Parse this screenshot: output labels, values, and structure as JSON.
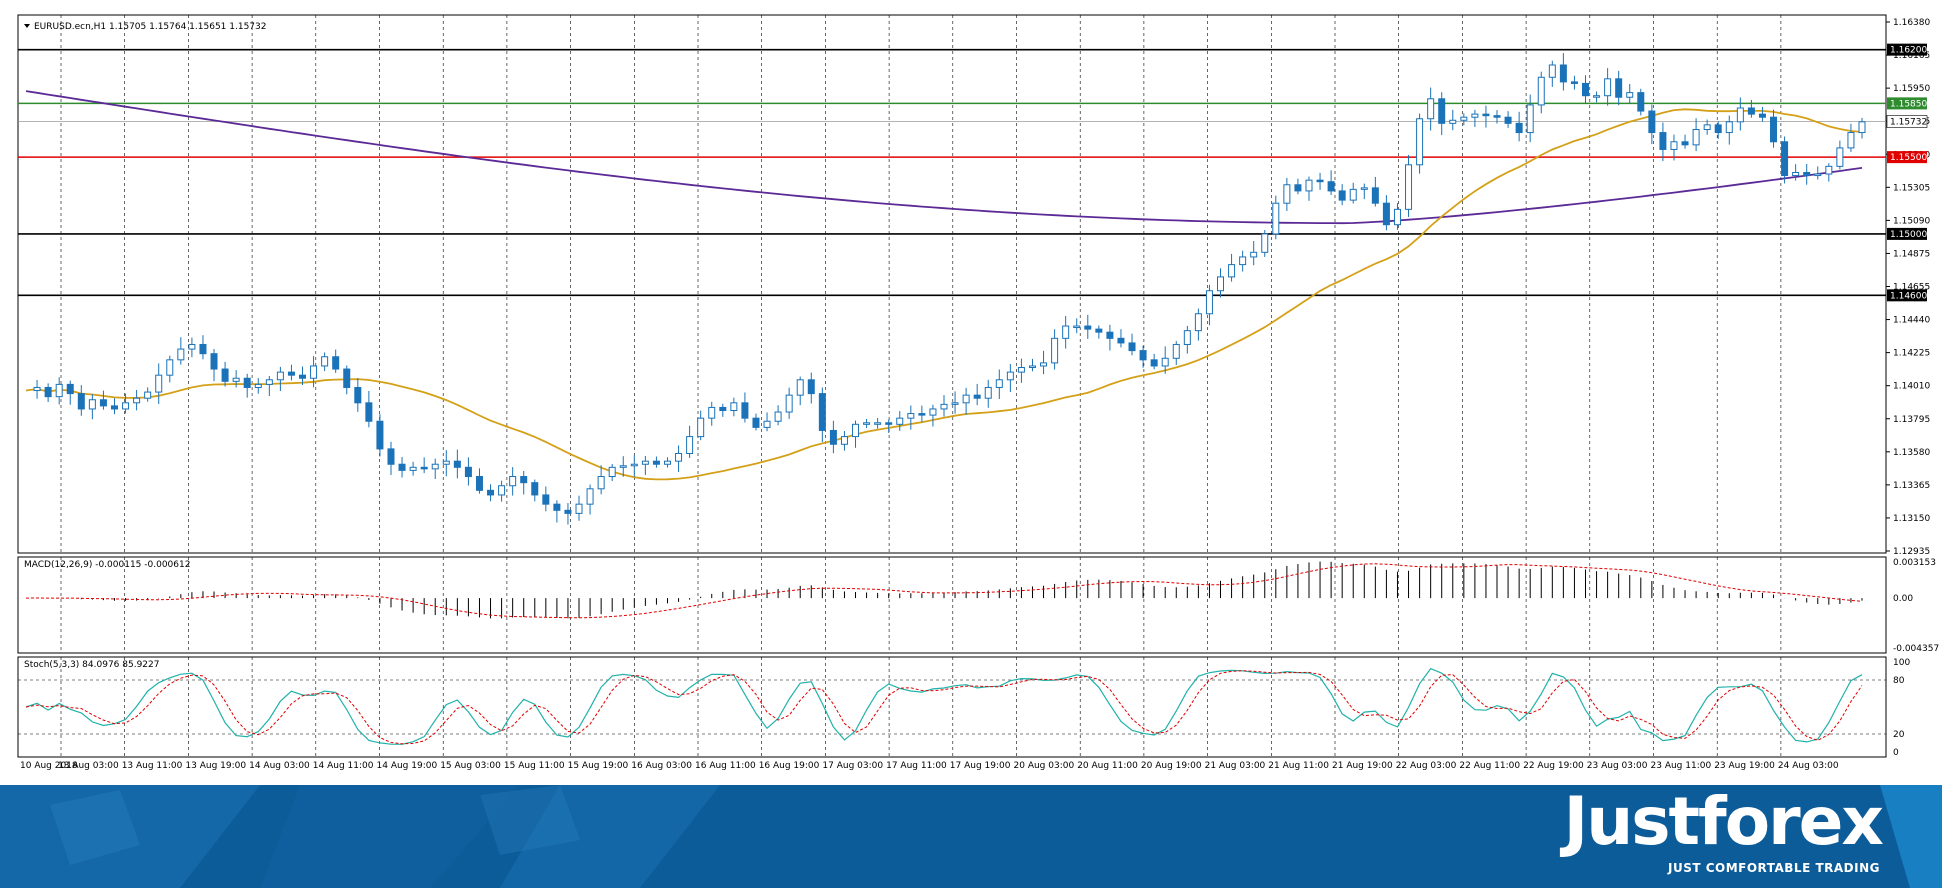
{
  "header": {
    "symbol_line": "EURUSD.ecn,H1  1.15705 1.15764 1.15651 1.15732"
  },
  "colors": {
    "candle": "#1a72b8",
    "ma_fast": "#d4a017",
    "ma_slow": "#5b2a96",
    "green_level": "#2e8b2e",
    "red_level": "#e00000",
    "black_level": "#000000",
    "macd_hist": "#000000",
    "macd_signal": "#e00000",
    "stoch_main": "#20b2aa",
    "stoch_signal": "#e00000",
    "banner": "#0d5c9a"
  },
  "chart_data": [
    {
      "type": "candlestick",
      "title": "EURUSD.ecn,H1",
      "ohlc_last": {
        "open": 1.15705,
        "high": 1.15764,
        "low": 1.15651,
        "close": 1.15732
      },
      "ylim": [
        1.12935,
        1.1638
      ],
      "y_ticks": [
        "1.16380",
        "1.16165",
        "1.15950",
        "1.15735",
        "1.15520",
        "1.15305",
        "1.15090",
        "1.14875",
        "1.14655",
        "1.14440",
        "1.14225",
        "1.14010",
        "1.13795",
        "1.13580",
        "1.13365",
        "1.13150",
        "1.12935"
      ],
      "x_ticks": [
        "10 Aug 2018",
        "13 Aug 03:00",
        "13 Aug 11:00",
        "13 Aug 19:00",
        "14 Aug 03:00",
        "14 Aug 11:00",
        "14 Aug 19:00",
        "15 Aug 03:00",
        "15 Aug 11:00",
        "15 Aug 19:00",
        "16 Aug 03:00",
        "16 Aug 11:00",
        "16 Aug 19:00",
        "17 Aug 03:00",
        "17 Aug 11:00",
        "17 Aug 19:00",
        "20 Aug 03:00",
        "20 Aug 11:00",
        "20 Aug 19:00",
        "21 Aug 03:00",
        "21 Aug 11:00",
        "21 Aug 19:00",
        "22 Aug 03:00",
        "22 Aug 11:00",
        "22 Aug 19:00",
        "23 Aug 03:00",
        "23 Aug 11:00",
        "23 Aug 19:00",
        "24 Aug 03:00"
      ],
      "levels": [
        {
          "value": 1.162,
          "label": "1.16200",
          "color": "#000000"
        },
        {
          "value": 1.1585,
          "label": "1.15850",
          "color": "#2e8b2e"
        },
        {
          "value": 1.15732,
          "label": "1.15732",
          "color": "#9a9a9a"
        },
        {
          "value": 1.155,
          "label": "1.15500",
          "color": "#e00000"
        },
        {
          "value": 1.15,
          "label": "1.15000",
          "color": "#000000"
        },
        {
          "value": 1.146,
          "label": "1.14600",
          "color": "#000000"
        }
      ],
      "close_path": [
        1.1398,
        1.14,
        1.1394,
        1.1402,
        1.1396,
        1.1386,
        1.1392,
        1.1388,
        1.1386,
        1.139,
        1.1393,
        1.1397,
        1.1408,
        1.1418,
        1.1425,
        1.1428,
        1.1422,
        1.1412,
        1.1404,
        1.1406,
        1.14,
        1.1402,
        1.1405,
        1.141,
        1.1408,
        1.1406,
        1.1414,
        1.142,
        1.1412,
        1.14,
        1.139,
        1.1378,
        1.136,
        1.135,
        1.1346,
        1.1348,
        1.1347,
        1.135,
        1.1352,
        1.1348,
        1.1342,
        1.1333,
        1.133,
        1.1336,
        1.1342,
        1.1338,
        1.133,
        1.1324,
        1.132,
        1.1318,
        1.1324,
        1.1334,
        1.1342,
        1.1348,
        1.1349,
        1.135,
        1.1352,
        1.135,
        1.1352,
        1.1357,
        1.1368,
        1.138,
        1.1387,
        1.1385,
        1.139,
        1.138,
        1.1374,
        1.1378,
        1.1384,
        1.1395,
        1.1405,
        1.1396,
        1.1372,
        1.1363,
        1.1368,
        1.1376,
        1.1377,
        1.1377,
        1.1376,
        1.138,
        1.1383,
        1.1382,
        1.1386,
        1.1389,
        1.139,
        1.1395,
        1.1393,
        1.14,
        1.1405,
        1.141,
        1.1413,
        1.1414,
        1.1416,
        1.1432,
        1.144,
        1.144,
        1.1438,
        1.1436,
        1.1432,
        1.1429,
        1.1424,
        1.1418,
        1.1414,
        1.1419,
        1.1428,
        1.1437,
        1.1448,
        1.1463,
        1.1472,
        1.148,
        1.1485,
        1.1488,
        1.15,
        1.152,
        1.1532,
        1.1528,
        1.1535,
        1.1534,
        1.1528,
        1.1522,
        1.1529,
        1.153,
        1.152,
        1.1506,
        1.1516,
        1.1545,
        1.1575,
        1.1588,
        1.1572,
        1.1574,
        1.1576,
        1.1578,
        1.1577,
        1.1576,
        1.1572,
        1.1566,
        1.1584,
        1.1602,
        1.161,
        1.1599,
        1.1598,
        1.159,
        1.159,
        1.1601,
        1.1589,
        1.1592,
        1.158,
        1.1566,
        1.1555,
        1.156,
        1.1558,
        1.1568,
        1.1571,
        1.1566,
        1.1573,
        1.1582,
        1.1578,
        1.1576,
        1.156,
        1.1538,
        1.154,
        1.1538,
        1.1539,
        1.1544,
        1.1556,
        1.1566,
        1.1573
      ]
    },
    {
      "type": "macd",
      "label": "MACD(12,26,9) -0.000115 -0.000612",
      "params": [
        12,
        26,
        9
      ],
      "main_last": -0.000115,
      "signal_last": -0.000612,
      "y_ticks": [
        "0.003153",
        "0.00",
        "-0.004357"
      ],
      "ylim": [
        -0.004357,
        0.003153
      ]
    },
    {
      "type": "stochastic",
      "label": "Stoch(5,3,3) 84.0976 85.9227",
      "params": [
        5,
        3,
        3
      ],
      "main_last": 84.0976,
      "signal_last": 85.9227,
      "y_ticks": [
        "100",
        "80",
        "20",
        "0"
      ],
      "levels": [
        80,
        20
      ],
      "ylim": [
        0,
        100
      ]
    }
  ],
  "brand": {
    "name": "Justforex",
    "slogan": "JUST COMFORTABLE TRADING"
  }
}
